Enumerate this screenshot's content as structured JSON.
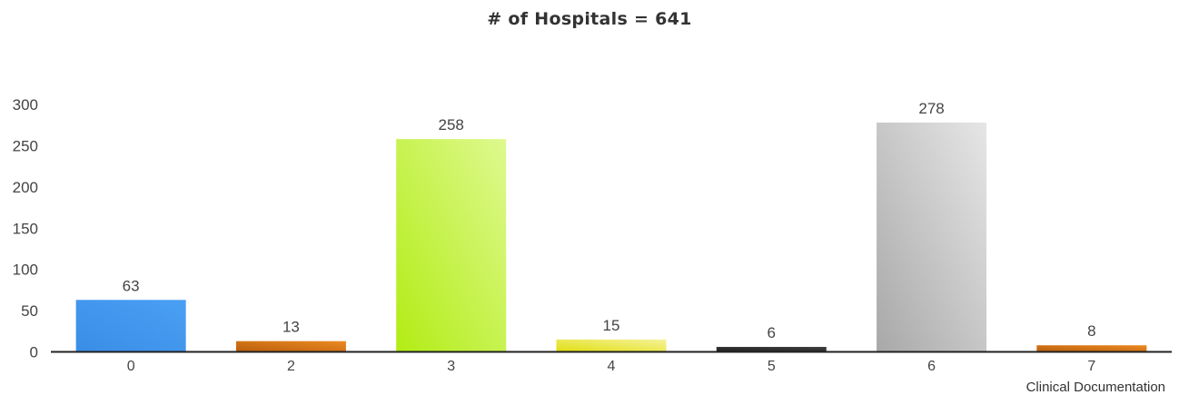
{
  "chart_data": {
    "type": "bar",
    "title": "# of Hospitals = 641",
    "xlabel": "Clinical Documentation",
    "ylabel": "",
    "categories": [
      "0",
      "2",
      "3",
      "4",
      "5",
      "6",
      "7"
    ],
    "values": [
      63,
      13,
      258,
      15,
      6,
      278,
      8
    ],
    "data_labels": [
      "63",
      "13",
      "258",
      "15",
      "6",
      "278",
      "8"
    ],
    "y_ticks": [
      0,
      50,
      100,
      150,
      200,
      250,
      300
    ],
    "ylim": [
      0,
      300
    ],
    "grid": false,
    "legend": "none",
    "colors": [
      {
        "light": "#4aa0f4",
        "dark": "#3a8de6"
      },
      {
        "light": "#ec8a22",
        "dark": "#b85e0c"
      },
      {
        "light": "#def98f",
        "dark": "#b2ec14"
      },
      {
        "light": "#f6f39a",
        "dark": "#e0de10"
      },
      {
        "light": "#3c3c3c",
        "dark": "#222222"
      },
      {
        "light": "#e6e6e6",
        "dark": "#a8a8a8"
      },
      {
        "light": "#ec8a22",
        "dark": "#b85e0c"
      }
    ],
    "axis_color": "#222222"
  }
}
